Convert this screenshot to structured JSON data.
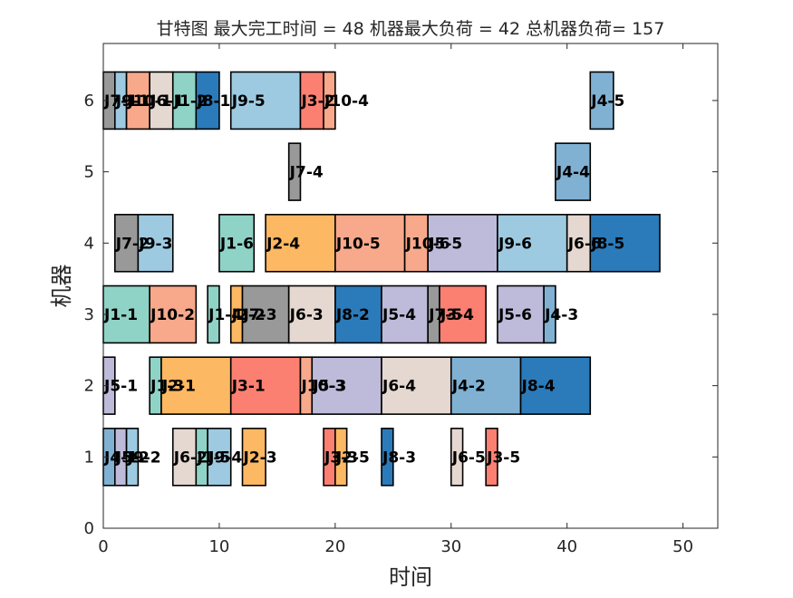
{
  "chart_data": {
    "type": "gantt",
    "title": "甘特图 最大完工时间 = 48 机器最大负荷 = 42 总机器负荷= 157",
    "xlabel": "时间",
    "ylabel": "机器",
    "xlim": [
      0,
      53
    ],
    "ylim": [
      0,
      6.8
    ],
    "xticks": [
      0,
      10,
      20,
      30,
      40,
      50
    ],
    "yticks": [
      0,
      1,
      2,
      3,
      4,
      5,
      6
    ],
    "grid": false,
    "bar_height": 0.8,
    "job_colors": {
      "J1": "#8fd3c7",
      "J2": "#fdb863",
      "J3": "#fb8072",
      "J4": "#80b1d3",
      "J5": "#bebada",
      "J6": "#e5d8d0",
      "J7": "#999999",
      "J8": "#2b7bba",
      "J9": "#9ecae1",
      "J10": "#f8a98b"
    },
    "tasks": [
      {
        "machine": 6,
        "job": "J7",
        "label": "J7-1",
        "start": 0,
        "end": 1
      },
      {
        "machine": 6,
        "job": "J9",
        "label": "J9-1",
        "start": 1,
        "end": 2
      },
      {
        "machine": 6,
        "job": "J10",
        "label": "J10-1",
        "start": 2,
        "end": 4
      },
      {
        "machine": 6,
        "job": "J6",
        "label": "J6-1",
        "start": 4,
        "end": 6
      },
      {
        "machine": 6,
        "job": "J1",
        "label": "J1-2",
        "start": 6,
        "end": 8
      },
      {
        "machine": 6,
        "job": "J8",
        "label": "J8-1",
        "start": 8,
        "end": 10
      },
      {
        "machine": 6,
        "job": "J9",
        "label": "J9-5",
        "start": 11,
        "end": 17
      },
      {
        "machine": 6,
        "job": "J3",
        "label": "J3-2",
        "start": 17,
        "end": 19
      },
      {
        "machine": 6,
        "job": "J10",
        "label": "J10-4",
        "start": 19,
        "end": 20
      },
      {
        "machine": 6,
        "job": "J4",
        "label": "J4-5",
        "start": 42,
        "end": 44
      },
      {
        "machine": 5,
        "job": "J7",
        "label": "J7-4",
        "start": 16,
        "end": 17
      },
      {
        "machine": 5,
        "job": "J4",
        "label": "J4-4",
        "start": 39,
        "end": 42
      },
      {
        "machine": 4,
        "job": "J7",
        "label": "J7-2",
        "start": 1,
        "end": 3
      },
      {
        "machine": 4,
        "job": "J9",
        "label": "J9-3",
        "start": 3,
        "end": 6
      },
      {
        "machine": 4,
        "job": "J1",
        "label": "J1-6",
        "start": 10,
        "end": 13
      },
      {
        "machine": 4,
        "job": "J2",
        "label": "J2-4",
        "start": 14,
        "end": 20
      },
      {
        "machine": 4,
        "job": "J10",
        "label": "J10-5",
        "start": 20,
        "end": 26
      },
      {
        "machine": 4,
        "job": "J10",
        "label": "J10-6",
        "start": 26,
        "end": 28
      },
      {
        "machine": 4,
        "job": "J5",
        "label": "J5-5",
        "start": 28,
        "end": 34
      },
      {
        "machine": 4,
        "job": "J9",
        "label": "J9-6",
        "start": 34,
        "end": 40
      },
      {
        "machine": 4,
        "job": "J6",
        "label": "J6-6",
        "start": 40,
        "end": 42
      },
      {
        "machine": 4,
        "job": "J8",
        "label": "J8-5",
        "start": 42,
        "end": 48
      },
      {
        "machine": 3,
        "job": "J1",
        "label": "J1-1",
        "start": 0,
        "end": 4
      },
      {
        "machine": 3,
        "job": "J10",
        "label": "J10-2",
        "start": 4,
        "end": 8
      },
      {
        "machine": 3,
        "job": "J1",
        "label": "J1-4",
        "start": 9,
        "end": 10
      },
      {
        "machine": 3,
        "job": "J2",
        "label": "J2-2",
        "start": 11,
        "end": 12
      },
      {
        "machine": 3,
        "job": "J7",
        "label": "J7-3",
        "start": 12,
        "end": 16
      },
      {
        "machine": 3,
        "job": "J6",
        "label": "J6-3",
        "start": 16,
        "end": 20
      },
      {
        "machine": 3,
        "job": "J8",
        "label": "J8-2",
        "start": 20,
        "end": 24
      },
      {
        "machine": 3,
        "job": "J5",
        "label": "J5-4",
        "start": 24,
        "end": 28
      },
      {
        "machine": 3,
        "job": "J7",
        "label": "J7-5",
        "start": 28,
        "end": 29
      },
      {
        "machine": 3,
        "job": "J3",
        "label": "J3-4",
        "start": 29,
        "end": 33
      },
      {
        "machine": 3,
        "job": "J5",
        "label": "J5-6",
        "start": 34,
        "end": 38
      },
      {
        "machine": 3,
        "job": "J4",
        "label": "J4-3",
        "start": 38,
        "end": 39
      },
      {
        "machine": 2,
        "job": "J5",
        "label": "J5-1",
        "start": 0,
        "end": 1
      },
      {
        "machine": 2,
        "job": "J1",
        "label": "J1-3",
        "start": 4,
        "end": 5
      },
      {
        "machine": 2,
        "job": "J2",
        "label": "J2-1",
        "start": 5,
        "end": 11
      },
      {
        "machine": 2,
        "job": "J3",
        "label": "J3-1",
        "start": 11,
        "end": 17
      },
      {
        "machine": 2,
        "job": "J10",
        "label": "J10-3",
        "start": 17,
        "end": 18
      },
      {
        "machine": 2,
        "job": "J5",
        "label": "J5-3",
        "start": 18,
        "end": 24
      },
      {
        "machine": 2,
        "job": "J6",
        "label": "J6-4",
        "start": 24,
        "end": 30
      },
      {
        "machine": 2,
        "job": "J4",
        "label": "J4-2",
        "start": 30,
        "end": 36
      },
      {
        "machine": 2,
        "job": "J8",
        "label": "J8-4",
        "start": 36,
        "end": 42
      },
      {
        "machine": 1,
        "job": "J4",
        "label": "J4-1",
        "start": 0,
        "end": 1
      },
      {
        "machine": 1,
        "job": "J5",
        "label": "J5-2",
        "start": 1,
        "end": 2
      },
      {
        "machine": 1,
        "job": "J9",
        "label": "J9-2",
        "start": 2,
        "end": 3
      },
      {
        "machine": 1,
        "job": "J6",
        "label": "J6-2",
        "start": 6,
        "end": 8
      },
      {
        "machine": 1,
        "job": "J1",
        "label": "J1-5",
        "start": 8,
        "end": 9
      },
      {
        "machine": 1,
        "job": "J9",
        "label": "J9-4",
        "start": 9,
        "end": 11
      },
      {
        "machine": 1,
        "job": "J2",
        "label": "J2-3",
        "start": 12,
        "end": 14
      },
      {
        "machine": 1,
        "job": "J3",
        "label": "J3-3",
        "start": 19,
        "end": 20
      },
      {
        "machine": 1,
        "job": "J2",
        "label": "J2-5",
        "start": 20,
        "end": 21
      },
      {
        "machine": 1,
        "job": "J8",
        "label": "J8-3",
        "start": 24,
        "end": 25
      },
      {
        "machine": 1,
        "job": "J6",
        "label": "J6-5",
        "start": 30,
        "end": 31
      },
      {
        "machine": 1,
        "job": "J3",
        "label": "J3-5",
        "start": 33,
        "end": 34
      }
    ]
  }
}
